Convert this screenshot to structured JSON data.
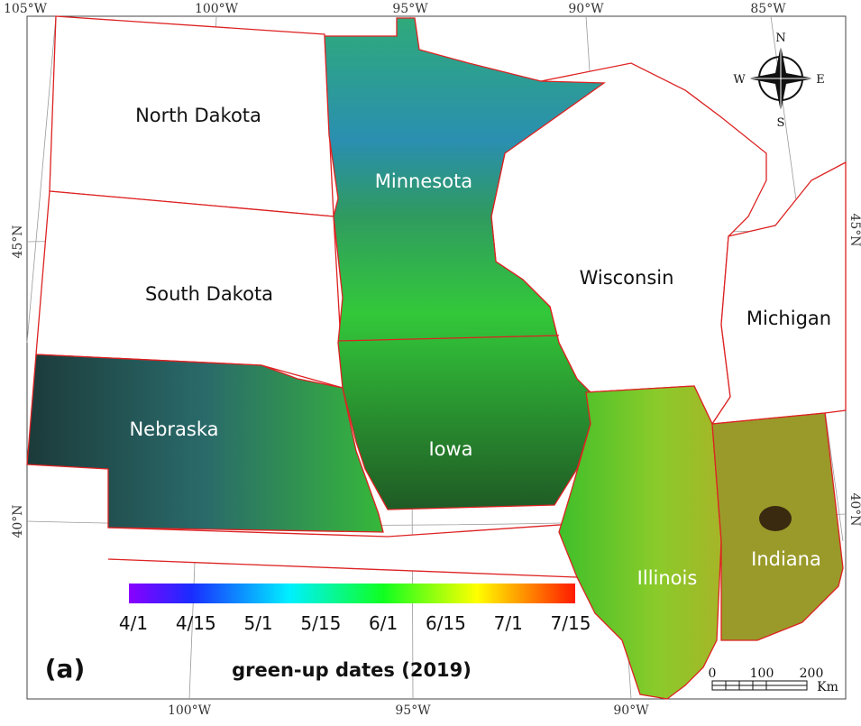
{
  "panel_label": "(a)",
  "graticule": {
    "top": [
      "105°W",
      "100°W",
      "95°W",
      "90°W",
      "85°W"
    ],
    "bottom": [
      "100°W",
      "95°W",
      "90°W"
    ],
    "left": [
      "45°N",
      "40°N"
    ],
    "right": [
      "45°N",
      "40°N"
    ]
  },
  "states": [
    "North Dakota",
    "South Dakota",
    "Nebraska",
    "Minnesota",
    "Iowa",
    "Wisconsin",
    "Michigan",
    "Illinois",
    "Indiana"
  ],
  "compass": {
    "north": "N",
    "south": "S",
    "east": "E",
    "west": "W"
  },
  "colorbar": {
    "title": "green-up dates (2019)",
    "labels": [
      "4/1",
      "4/15",
      "5/1",
      "5/15",
      "6/1",
      "6/15",
      "7/1",
      "7/15"
    ]
  },
  "scale_bar": {
    "labels": [
      "0",
      "100",
      "200"
    ],
    "unit": "Km"
  }
}
